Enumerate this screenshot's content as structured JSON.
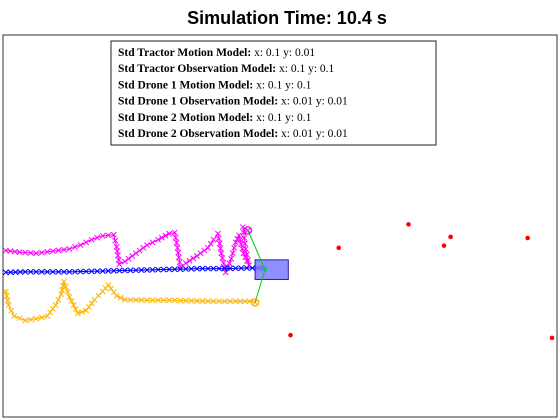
{
  "chart_data": {
    "type": "scatter",
    "title": "Simulation Time: 10.4 s",
    "xlim": [
      0,
      100
    ],
    "ylim": [
      0,
      70
    ],
    "grid": false,
    "legend": {
      "placement": "top-center",
      "entries": [
        {
          "label": "Std Tractor Motion Model:",
          "value": "x: 0.1 y: 0.01"
        },
        {
          "label": "Std Tractor Observation Model:",
          "value": "x: 0.1 y: 0.1"
        },
        {
          "label": "Std Drone 1 Motion Model:",
          "value": "x: 0.1 y: 0.1"
        },
        {
          "label": "Std Drone 1 Observation Model:",
          "value": "x: 0.01 y: 0.01"
        },
        {
          "label": "Std Drone 2 Motion Model:",
          "value": "x: 0.1 y: 0.1"
        },
        {
          "label": "Std Drone 2 Observation Model:",
          "value": "x: 0.01 y: 0.01"
        }
      ]
    },
    "series": [
      {
        "color": "#ff00ff",
        "marker": "x",
        "points": [
          [
            0.5,
            30.5
          ],
          [
            3,
            30.2
          ],
          [
            6,
            30
          ],
          [
            9,
            30.4
          ],
          [
            12,
            30.8
          ],
          [
            14,
            31.5
          ],
          [
            16,
            32.5
          ],
          [
            18,
            33.2
          ],
          [
            20,
            33.4
          ],
          [
            20.5,
            31.2
          ],
          [
            21,
            28
          ],
          [
            22,
            28.5
          ],
          [
            24,
            30
          ],
          [
            26,
            31.5
          ],
          [
            28,
            32.5
          ],
          [
            30,
            33.6
          ],
          [
            31,
            33.8
          ],
          [
            31.5,
            31
          ],
          [
            32,
            27.5
          ],
          [
            33,
            28.2
          ],
          [
            35,
            29.5
          ],
          [
            37,
            31
          ],
          [
            38,
            32.5
          ],
          [
            38.8,
            33.6
          ],
          [
            39.4,
            30
          ],
          [
            40.2,
            26.5
          ],
          [
            41.2,
            29
          ],
          [
            42,
            32
          ],
          [
            42.6,
            33.3
          ],
          [
            43.4,
            30
          ],
          [
            44.4,
            27.8
          ],
          [
            43.8,
            30.8
          ],
          [
            43.3,
            34.8
          ],
          [
            44.2,
            34.2
          ]
        ]
      },
      {
        "color": "#ffb400",
        "marker": "x",
        "points": [
          [
            0.5,
            23
          ],
          [
            1,
            20.5
          ],
          [
            2,
            18.5
          ],
          [
            4,
            17.7
          ],
          [
            6,
            18
          ],
          [
            8,
            18.5
          ],
          [
            9.5,
            20.5
          ],
          [
            10.5,
            22.5
          ],
          [
            11,
            24.8
          ],
          [
            12,
            22
          ],
          [
            13.5,
            19
          ],
          [
            15,
            19.5
          ],
          [
            16.5,
            21.5
          ],
          [
            18,
            23
          ],
          [
            19,
            24.2
          ],
          [
            20.5,
            22.2
          ],
          [
            22,
            21.5
          ],
          [
            26,
            21.4
          ],
          [
            30,
            21.4
          ],
          [
            34,
            21.3
          ],
          [
            38,
            21.2
          ],
          [
            42,
            21.2
          ],
          [
            44.5,
            21.2
          ],
          [
            45.5,
            21
          ]
        ]
      },
      {
        "color": "#0000ff",
        "marker": "x",
        "points": [
          [
            0.5,
            26.5
          ],
          [
            4,
            26.6
          ],
          [
            8,
            26.6
          ],
          [
            12,
            26.6
          ],
          [
            16,
            26.7
          ],
          [
            20,
            26.8
          ],
          [
            24,
            26.9
          ],
          [
            28,
            27
          ],
          [
            32,
            27.1
          ],
          [
            36,
            27.2
          ],
          [
            40,
            27.2
          ],
          [
            44,
            27.3
          ],
          [
            47,
            27.3
          ]
        ]
      },
      {
        "color": "#ff0000",
        "marker": "dot",
        "points": [
          [
            60.6,
            31
          ],
          [
            73.2,
            35.3
          ],
          [
            79.6,
            31.4
          ],
          [
            80.8,
            33
          ],
          [
            94.7,
            32.8
          ],
          [
            51.9,
            15
          ],
          [
            99.1,
            14.5
          ]
        ]
      },
      {
        "color": "#00cc66",
        "marker": "dot",
        "points": [
          [
            47.3,
            27
          ]
        ]
      }
    ],
    "tractor": {
      "x": 47.3,
      "y": 27,
      "color": "#7b7bff",
      "width": 6,
      "height": 3.6
    },
    "drones": [
      {
        "x": 44.2,
        "y": 34.2,
        "color": "#ff00ff"
      },
      {
        "x": 45.5,
        "y": 21,
        "color": "#ffb400"
      }
    ],
    "links_color": "#00cc00"
  }
}
